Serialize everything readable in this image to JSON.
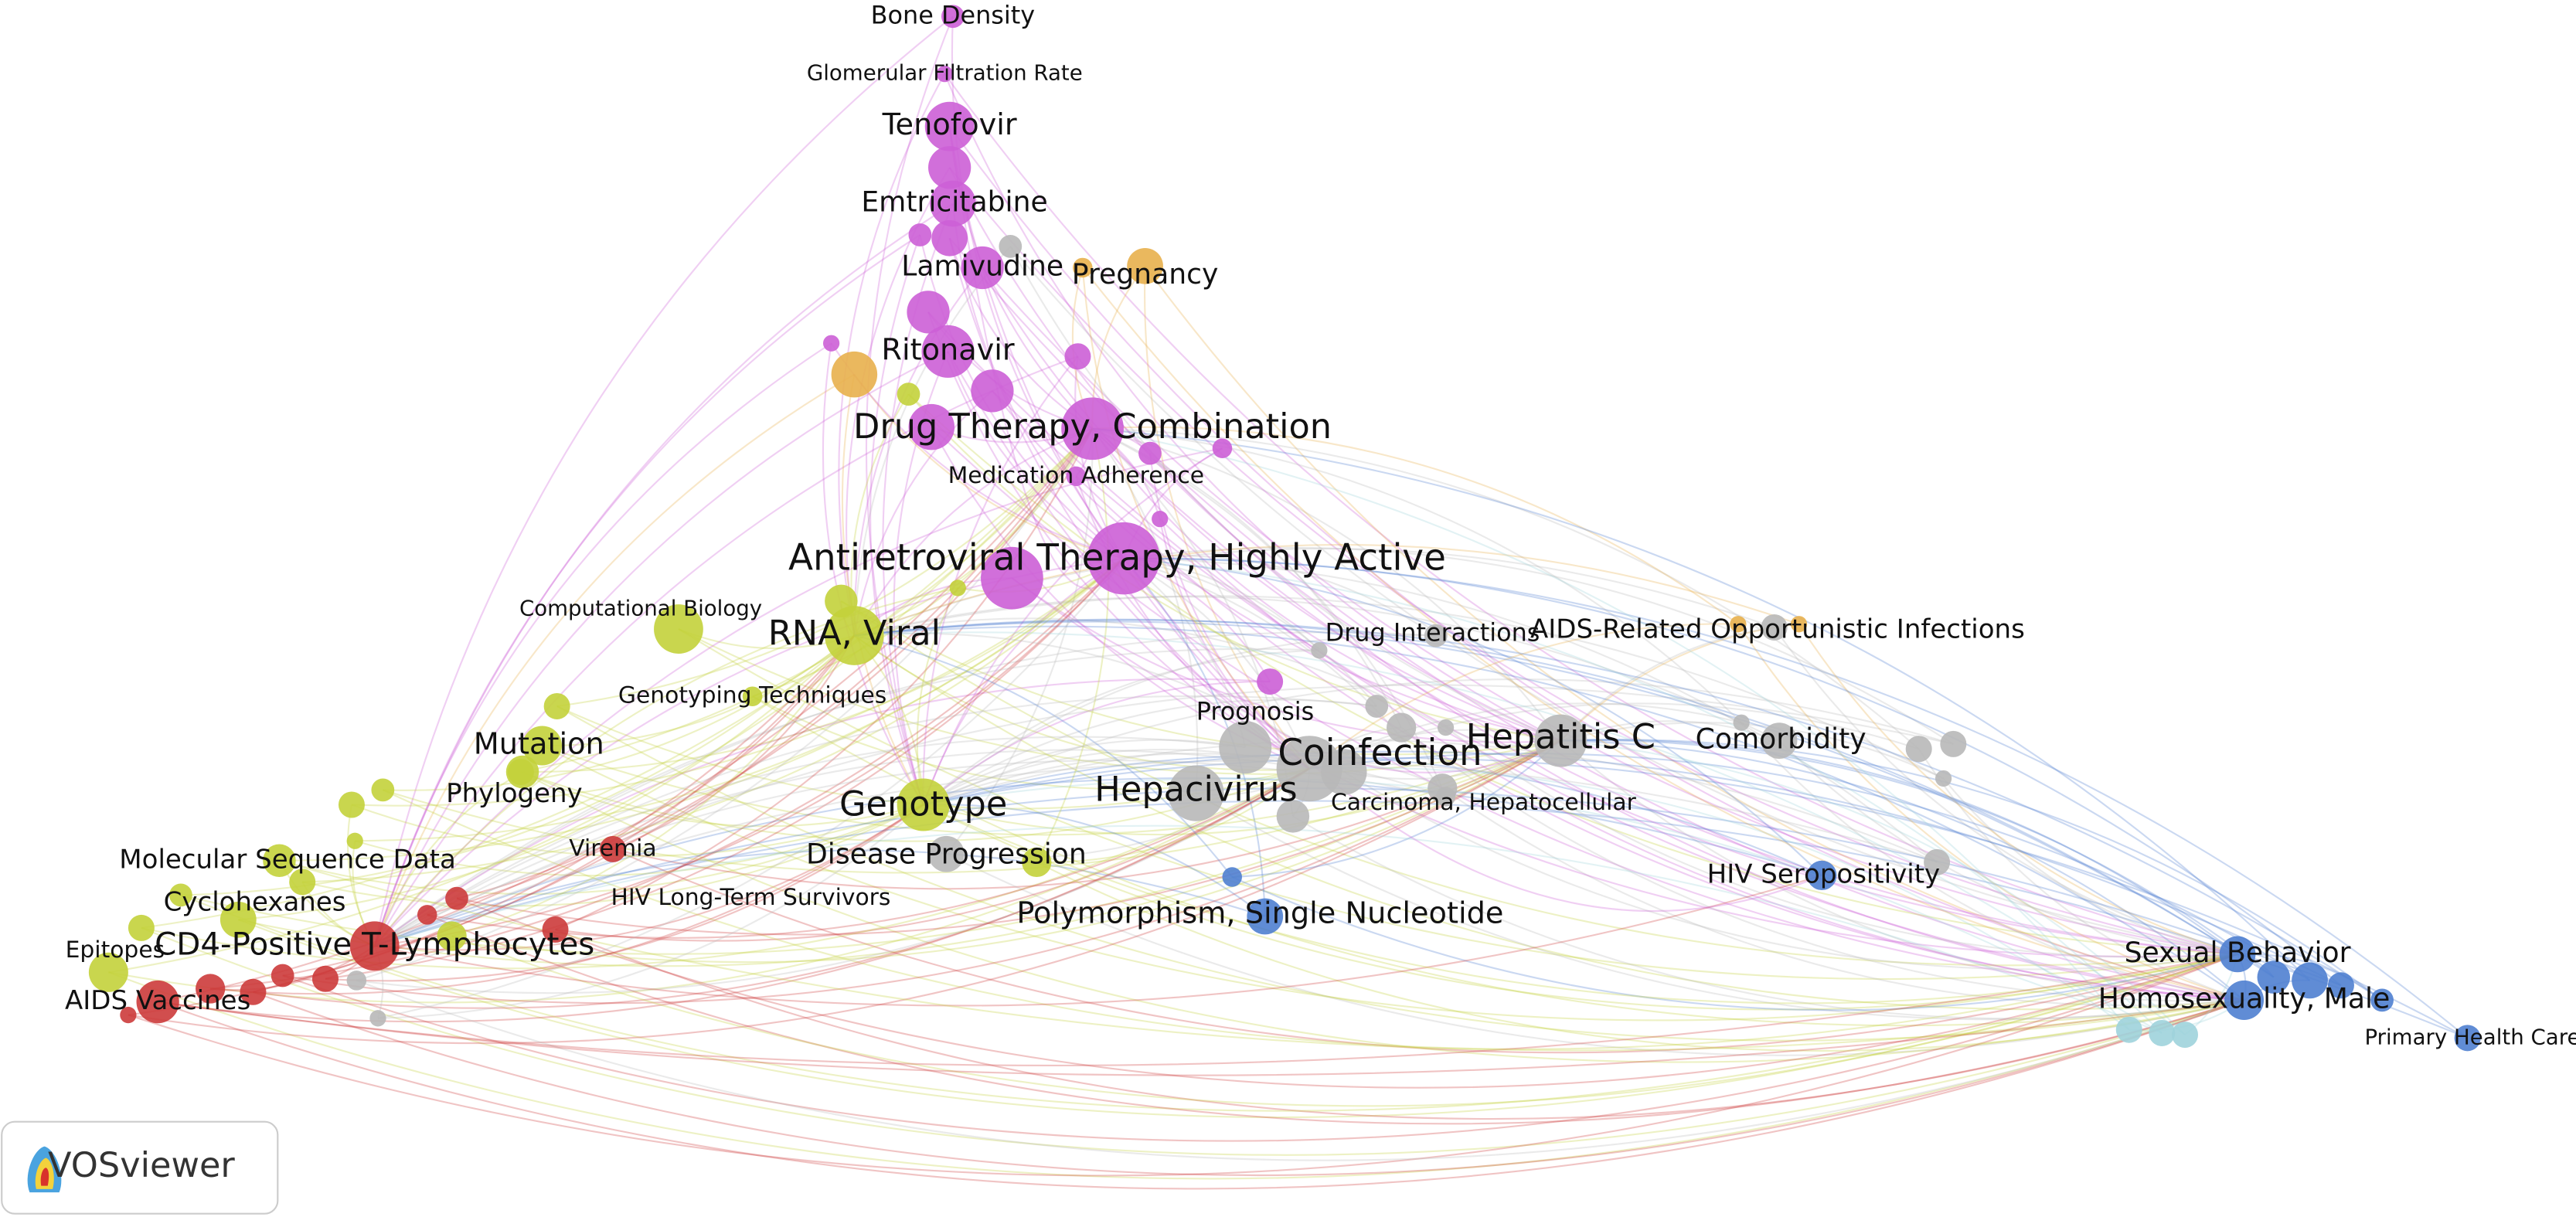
{
  "nodes": [
    {
      "label": "Bone Density"
    },
    {
      "label": "Glomerular Filtration Rate"
    },
    {
      "label": "Tenofovir"
    },
    {
      "label": "Emtricitabine"
    },
    {
      "label": "Lamivudine"
    },
    {
      "label": "Pregnancy"
    },
    {
      "label": "Ritonavir"
    },
    {
      "label": "Drug Therapy, Combination"
    },
    {
      "label": "Medication Adherence"
    },
    {
      "label": "Antiretroviral Therapy, Highly Active"
    },
    {
      "label": "Computational Biology"
    },
    {
      "label": "RNA, Viral"
    },
    {
      "label": "Drug Interactions"
    },
    {
      "label": "AIDS-Related Opportunistic Infections"
    },
    {
      "label": "Genotyping Techniques"
    },
    {
      "label": "Prognosis"
    },
    {
      "label": "Mutation"
    },
    {
      "label": "Hepatitis C"
    },
    {
      "label": "Coinfection"
    },
    {
      "label": "Comorbidity"
    },
    {
      "label": "Hepacivirus"
    },
    {
      "label": "Phylogeny"
    },
    {
      "label": "Genotype"
    },
    {
      "label": "Carcinoma, Hepatocellular"
    },
    {
      "label": "Molecular Sequence Data"
    },
    {
      "label": "Viremia"
    },
    {
      "label": "Disease Progression"
    },
    {
      "label": "HIV Seropositivity"
    },
    {
      "label": "Cyclohexanes"
    },
    {
      "label": "HIV Long-Term Survivors"
    },
    {
      "label": "Polymorphism, Single Nucleotide"
    },
    {
      "label": "Sexual Behavior"
    },
    {
      "label": "Epitopes"
    },
    {
      "label": "CD4-Positive T-Lymphocytes"
    },
    {
      "label": "Homosexuality, Male"
    },
    {
      "label": "AIDS Vaccines"
    },
    {
      "label": "Primary Health Care"
    }
  ],
  "logo": {
    "text": "VOSviewer"
  }
}
